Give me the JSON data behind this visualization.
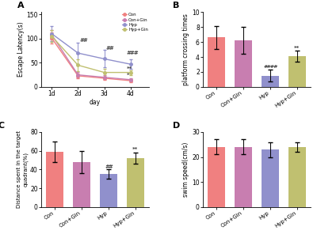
{
  "panel_A": {
    "days": [
      1,
      2,
      3,
      4
    ],
    "day_labels": [
      "1d",
      "2d",
      "3d",
      "4d"
    ],
    "Con": {
      "mean": [
        101,
        23,
        18,
        13
      ],
      "err": [
        12,
        5,
        4,
        3
      ]
    },
    "ConGin": {
      "mean": [
        108,
        25,
        20,
        15
      ],
      "err": [
        10,
        6,
        4,
        3
      ]
    },
    "Hyp": {
      "mean": [
        110,
        70,
        58,
        47
      ],
      "err": [
        15,
        22,
        18,
        10
      ]
    },
    "HypGin": {
      "mean": [
        105,
        45,
        30,
        30
      ],
      "err": [
        12,
        12,
        8,
        5
      ]
    },
    "ylabel": "Escape Latency(s)",
    "xlabel": "day",
    "ylim": [
      0,
      155
    ],
    "yticks": [
      0,
      50,
      100,
      150
    ]
  },
  "panel_B": {
    "categories": [
      "Con",
      "Con+Gin",
      "Hyp",
      "Hyp+Gin"
    ],
    "means": [
      6.6,
      6.2,
      1.5,
      4.1
    ],
    "errors": [
      1.5,
      1.8,
      0.8,
      0.7
    ],
    "ylabel": "platform crossing times",
    "ylim": [
      0,
      10
    ],
    "yticks": [
      0,
      2,
      4,
      6,
      8,
      10
    ]
  },
  "panel_C": {
    "categories": [
      "Con",
      "Con+Gin",
      "Hyp",
      "Hyp+Gin"
    ],
    "means": [
      59,
      48,
      35,
      52
    ],
    "errors": [
      11,
      12,
      5,
      6
    ],
    "ylabel": "Distance spent in the target\nquadrant(%)",
    "ylim": [
      0,
      80
    ],
    "yticks": [
      0,
      20,
      40,
      60,
      80
    ]
  },
  "panel_D": {
    "categories": [
      "Con",
      "Con+Gin",
      "Hyp",
      "Hyp+Gin"
    ],
    "means": [
      24,
      24,
      23,
      24
    ],
    "errors": [
      3,
      3,
      3,
      2
    ],
    "ylabel": "swim speed(cm/s)",
    "ylim": [
      0,
      30
    ],
    "yticks": [
      0,
      10,
      20,
      30
    ]
  },
  "colors": {
    "Con": "#F08080",
    "ConGin": "#C87EB0",
    "Hyp": "#9090CC",
    "HypGin": "#C0C070"
  },
  "legend_labels": [
    "Con",
    "Con+Gin",
    "Hyp",
    "Hyp+Gin"
  ],
  "bg_color": "#ffffff"
}
